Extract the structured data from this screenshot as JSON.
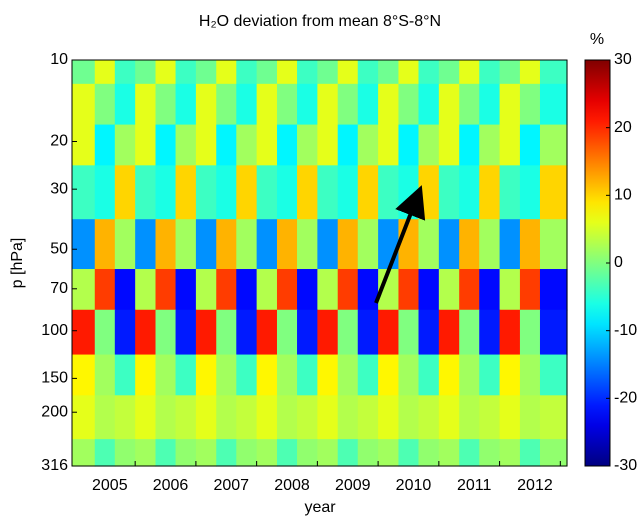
{
  "chart_data": {
    "type": "heatmap",
    "title": "H₂O deviation from mean 8°S-8°N",
    "x_label": "year",
    "y_label": "p [hPa]",
    "x": [
      2004.67,
      2005,
      2005.33,
      2005.67,
      2006,
      2006.33,
      2006.67,
      2007,
      2007.33,
      2007.67,
      2008,
      2008.33,
      2008.67,
      2009,
      2009.33,
      2009.67,
      2010,
      2010.33,
      2010.67,
      2011,
      2011.33,
      2011.67,
      2012,
      2012.33
    ],
    "y": [
      10,
      15,
      20,
      30,
      50,
      70,
      100,
      150,
      200,
      316
    ],
    "z": [
      [
        -1,
        6,
        -4,
        -1,
        6,
        -4,
        -1,
        6,
        -4,
        -1,
        6,
        -4,
        -1,
        6,
        -4,
        -1,
        6,
        -4,
        -1,
        6,
        -4,
        -1,
        6,
        -4
      ],
      [
        6,
        0,
        -6,
        6,
        0,
        -6,
        6,
        0,
        -6,
        6,
        0,
        -6,
        6,
        0,
        -6,
        6,
        0,
        -6,
        6,
        0,
        -6,
        6,
        0,
        -6
      ],
      [
        6,
        -8,
        2,
        6,
        -8,
        2,
        6,
        -8,
        2,
        6,
        -8,
        2,
        6,
        -8,
        2,
        6,
        -8,
        2,
        6,
        -8,
        2,
        6,
        -8,
        2
      ],
      [
        -4,
        -6,
        10,
        -4,
        -6,
        10,
        -4,
        -6,
        10,
        -4,
        -6,
        10,
        -4,
        -6,
        10,
        -4,
        -6,
        10,
        -4,
        -6,
        10,
        -4,
        -6,
        10
      ],
      [
        -14,
        12,
        2,
        -14,
        12,
        2,
        -14,
        12,
        2,
        -14,
        12,
        2,
        -14,
        12,
        2,
        -14,
        12,
        2,
        -14,
        12,
        2,
        -14,
        12,
        2
      ],
      [
        3,
        19,
        -22,
        3,
        19,
        -22,
        3,
        19,
        -22,
        3,
        19,
        -22,
        3,
        19,
        -22,
        3,
        19,
        -22,
        3,
        19,
        -22,
        3,
        19,
        -22
      ],
      [
        21,
        0,
        -21,
        21,
        0,
        -21,
        21,
        0,
        -21,
        21,
        0,
        -21,
        21,
        0,
        -21,
        21,
        0,
        -21,
        21,
        0,
        -21,
        21,
        0,
        -21
      ],
      [
        8,
        2,
        -4,
        8,
        2,
        -4,
        8,
        2,
        -4,
        8,
        2,
        -4,
        8,
        2,
        -4,
        8,
        2,
        -4,
        8,
        2,
        -4,
        8,
        2,
        -4
      ],
      [
        6,
        3,
        4,
        6,
        3,
        4,
        6,
        3,
        4,
        6,
        3,
        4,
        6,
        3,
        4,
        6,
        3,
        4,
        6,
        3,
        4,
        6,
        3,
        4
      ],
      [
        2,
        -3,
        1,
        2,
        -3,
        1,
        2,
        -3,
        1,
        2,
        -3,
        1,
        2,
        -3,
        1,
        2,
        -3,
        1,
        2,
        -3,
        1,
        2,
        -3,
        1
      ]
    ],
    "xlim": [
      2004.46,
      2012.61
    ],
    "xticks": [
      2005,
      2006,
      2007,
      2008,
      2009,
      2010,
      2011,
      2012
    ],
    "ylim": [
      10,
      316
    ],
    "y_scale": "log",
    "y_inverted": true,
    "yticks": [
      10,
      20,
      30,
      50,
      70,
      100,
      150,
      200,
      316
    ],
    "colormap": "jet",
    "colorbar": {
      "label": "%",
      "lim": [
        -30,
        30
      ],
      "ticks": [
        -30,
        -20,
        -10,
        0,
        10,
        20,
        30
      ]
    }
  }
}
